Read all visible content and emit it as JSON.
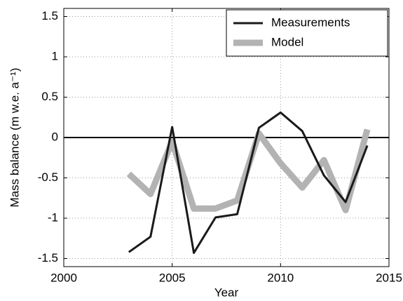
{
  "chart_data": {
    "type": "line",
    "x_label": "Year",
    "y_label": "Mass balance (m w.e. a⁻¹)",
    "x": [
      2003,
      2004,
      2005,
      2006,
      2007,
      2008,
      2009,
      2010,
      2011,
      2012,
      2013,
      2014
    ],
    "series": [
      {
        "name": "Measurements",
        "color": "#1a1a1a",
        "values": [
          -1.42,
          -1.23,
          0.13,
          -1.43,
          -0.99,
          -0.95,
          0.12,
          0.31,
          0.08,
          -0.47,
          -0.8,
          -0.1
        ]
      },
      {
        "name": "Model",
        "color": "#b3b3b3",
        "values": [
          -0.45,
          -0.7,
          -0.05,
          -0.88,
          -0.88,
          -0.78,
          0.05,
          -0.32,
          -0.62,
          -0.28,
          -0.9,
          0.1
        ]
      }
    ],
    "xlim": [
      2000,
      2015
    ],
    "xticks": [
      2000,
      2005,
      2010,
      2015
    ],
    "ylim": [
      -1.6,
      1.6
    ],
    "yticks": [
      -1.5,
      -1,
      -0.5,
      0,
      0.5,
      1,
      1.5
    ],
    "hline": 0,
    "grid": true,
    "legend": "upper right"
  }
}
